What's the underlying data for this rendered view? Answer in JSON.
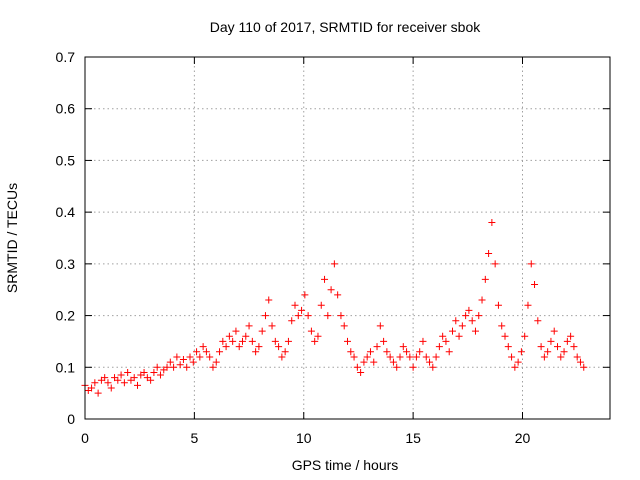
{
  "chart_data": {
    "type": "scatter",
    "title": "Day 110 of 2017, SRMTID for receiver sbok",
    "xlabel": "GPS time / hours",
    "ylabel": "SRMTID / TECUs",
    "xlim": [
      0,
      24
    ],
    "ylim": [
      0,
      0.7
    ],
    "x_ticks": [
      0,
      5,
      10,
      15,
      20
    ],
    "x_tick_labels": [
      "0",
      "5",
      "10",
      "15",
      "20"
    ],
    "y_ticks": [
      0,
      0.1,
      0.2,
      0.3,
      0.4,
      0.5,
      0.6,
      0.7
    ],
    "y_tick_labels": [
      "0",
      "0.1",
      "0.2",
      "0.3",
      "0.4",
      "0.5",
      "0.6",
      "0.7"
    ],
    "grid": true,
    "marker": "plus",
    "marker_color": "#ff0000",
    "series": [
      {
        "name": "SRMTID",
        "x": [
          0.0,
          0.15,
          0.3,
          0.45,
          0.6,
          0.75,
          0.9,
          1.05,
          1.2,
          1.35,
          1.5,
          1.65,
          1.8,
          1.95,
          2.1,
          2.25,
          2.4,
          2.55,
          2.7,
          2.85,
          3.0,
          3.15,
          3.3,
          3.45,
          3.6,
          3.75,
          3.9,
          4.05,
          4.2,
          4.35,
          4.5,
          4.65,
          4.8,
          4.95,
          5.1,
          5.25,
          5.4,
          5.55,
          5.7,
          5.85,
          6.0,
          6.15,
          6.3,
          6.45,
          6.6,
          6.75,
          6.9,
          7.05,
          7.2,
          7.35,
          7.5,
          7.65,
          7.8,
          7.95,
          8.1,
          8.25,
          8.4,
          8.55,
          8.7,
          8.85,
          9.0,
          9.15,
          9.3,
          9.45,
          9.6,
          9.75,
          9.9,
          10.05,
          10.2,
          10.35,
          10.5,
          10.65,
          10.8,
          10.95,
          11.1,
          11.25,
          11.4,
          11.55,
          11.7,
          11.85,
          12.0,
          12.15,
          12.3,
          12.45,
          12.6,
          12.75,
          12.9,
          13.05,
          13.2,
          13.35,
          13.5,
          13.65,
          13.8,
          13.95,
          14.1,
          14.25,
          14.4,
          14.55,
          14.7,
          14.85,
          15.0,
          15.15,
          15.3,
          15.45,
          15.6,
          15.75,
          15.9,
          16.05,
          16.2,
          16.35,
          16.5,
          16.65,
          16.8,
          16.95,
          17.1,
          17.25,
          17.4,
          17.55,
          17.7,
          17.85,
          18.0,
          18.15,
          18.3,
          18.45,
          18.6,
          18.75,
          18.9,
          19.05,
          19.2,
          19.35,
          19.5,
          19.65,
          19.8,
          19.95,
          20.1,
          20.25,
          20.4,
          20.55,
          20.7,
          20.85,
          21.0,
          21.15,
          21.3,
          21.45,
          21.6,
          21.75,
          21.9,
          22.05,
          22.2,
          22.35,
          22.5,
          22.65,
          22.8
        ],
        "y": [
          0.065,
          0.055,
          0.06,
          0.07,
          0.05,
          0.075,
          0.08,
          0.07,
          0.06,
          0.08,
          0.075,
          0.085,
          0.07,
          0.09,
          0.075,
          0.08,
          0.065,
          0.085,
          0.09,
          0.08,
          0.075,
          0.09,
          0.1,
          0.085,
          0.095,
          0.1,
          0.11,
          0.1,
          0.12,
          0.105,
          0.115,
          0.1,
          0.12,
          0.11,
          0.13,
          0.12,
          0.14,
          0.13,
          0.12,
          0.1,
          0.11,
          0.13,
          0.15,
          0.14,
          0.16,
          0.15,
          0.17,
          0.14,
          0.15,
          0.16,
          0.18,
          0.15,
          0.13,
          0.14,
          0.17,
          0.2,
          0.23,
          0.18,
          0.15,
          0.14,
          0.12,
          0.13,
          0.15,
          0.19,
          0.22,
          0.2,
          0.21,
          0.24,
          0.2,
          0.17,
          0.15,
          0.16,
          0.22,
          0.27,
          0.2,
          0.25,
          0.3,
          0.24,
          0.2,
          0.18,
          0.15,
          0.13,
          0.12,
          0.1,
          0.09,
          0.11,
          0.12,
          0.13,
          0.11,
          0.14,
          0.18,
          0.15,
          0.13,
          0.12,
          0.11,
          0.1,
          0.12,
          0.14,
          0.13,
          0.12,
          0.1,
          0.12,
          0.13,
          0.15,
          0.12,
          0.11,
          0.1,
          0.12,
          0.14,
          0.16,
          0.15,
          0.13,
          0.17,
          0.19,
          0.16,
          0.18,
          0.2,
          0.21,
          0.19,
          0.17,
          0.2,
          0.23,
          0.27,
          0.32,
          0.38,
          0.3,
          0.22,
          0.18,
          0.16,
          0.14,
          0.12,
          0.1,
          0.11,
          0.13,
          0.16,
          0.22,
          0.3,
          0.26,
          0.19,
          0.14,
          0.12,
          0.13,
          0.15,
          0.17,
          0.14,
          0.12,
          0.13,
          0.15,
          0.16,
          0.14,
          0.12,
          0.11,
          0.1
        ]
      }
    ]
  }
}
